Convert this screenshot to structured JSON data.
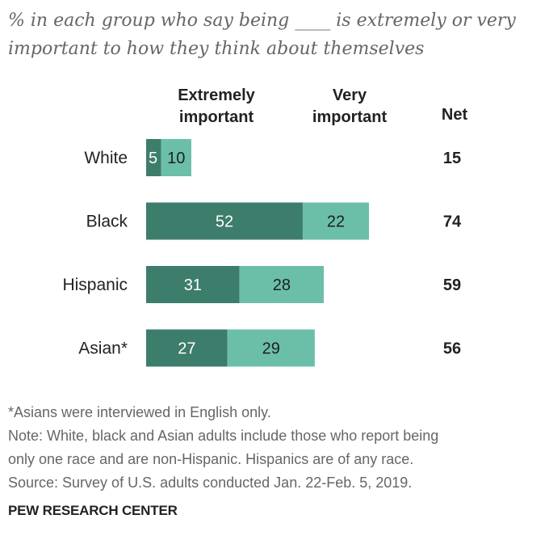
{
  "subtitle": "% in each group who say being ____ is extremely or very important to how they think about themselves",
  "chart_data": {
    "type": "bar",
    "orientation": "horizontal",
    "stacked": true,
    "categories": [
      "White",
      "Black",
      "Hispanic",
      "Asian*"
    ],
    "series": [
      {
        "name": "Extremely important",
        "values": [
          5,
          52,
          31,
          27
        ],
        "color": "#3d7d6c"
      },
      {
        "name": "Very important",
        "values": [
          10,
          22,
          28,
          29
        ],
        "color": "#6bbfa9"
      }
    ],
    "net_label": "Net",
    "net": [
      15,
      74,
      59,
      56
    ],
    "legend": "top",
    "grid": false,
    "xlim": [
      0,
      74
    ]
  },
  "notes": [
    "*Asians were interviewed in English only.",
    "Note: White, black and Asian adults include those who report being",
    "only one race and are non-Hispanic. Hispanics are of any race.",
    "Source: Survey of U.S. adults conducted Jan. 22-Feb. 5, 2019."
  ],
  "brand": "PEW RESEARCH CENTER"
}
